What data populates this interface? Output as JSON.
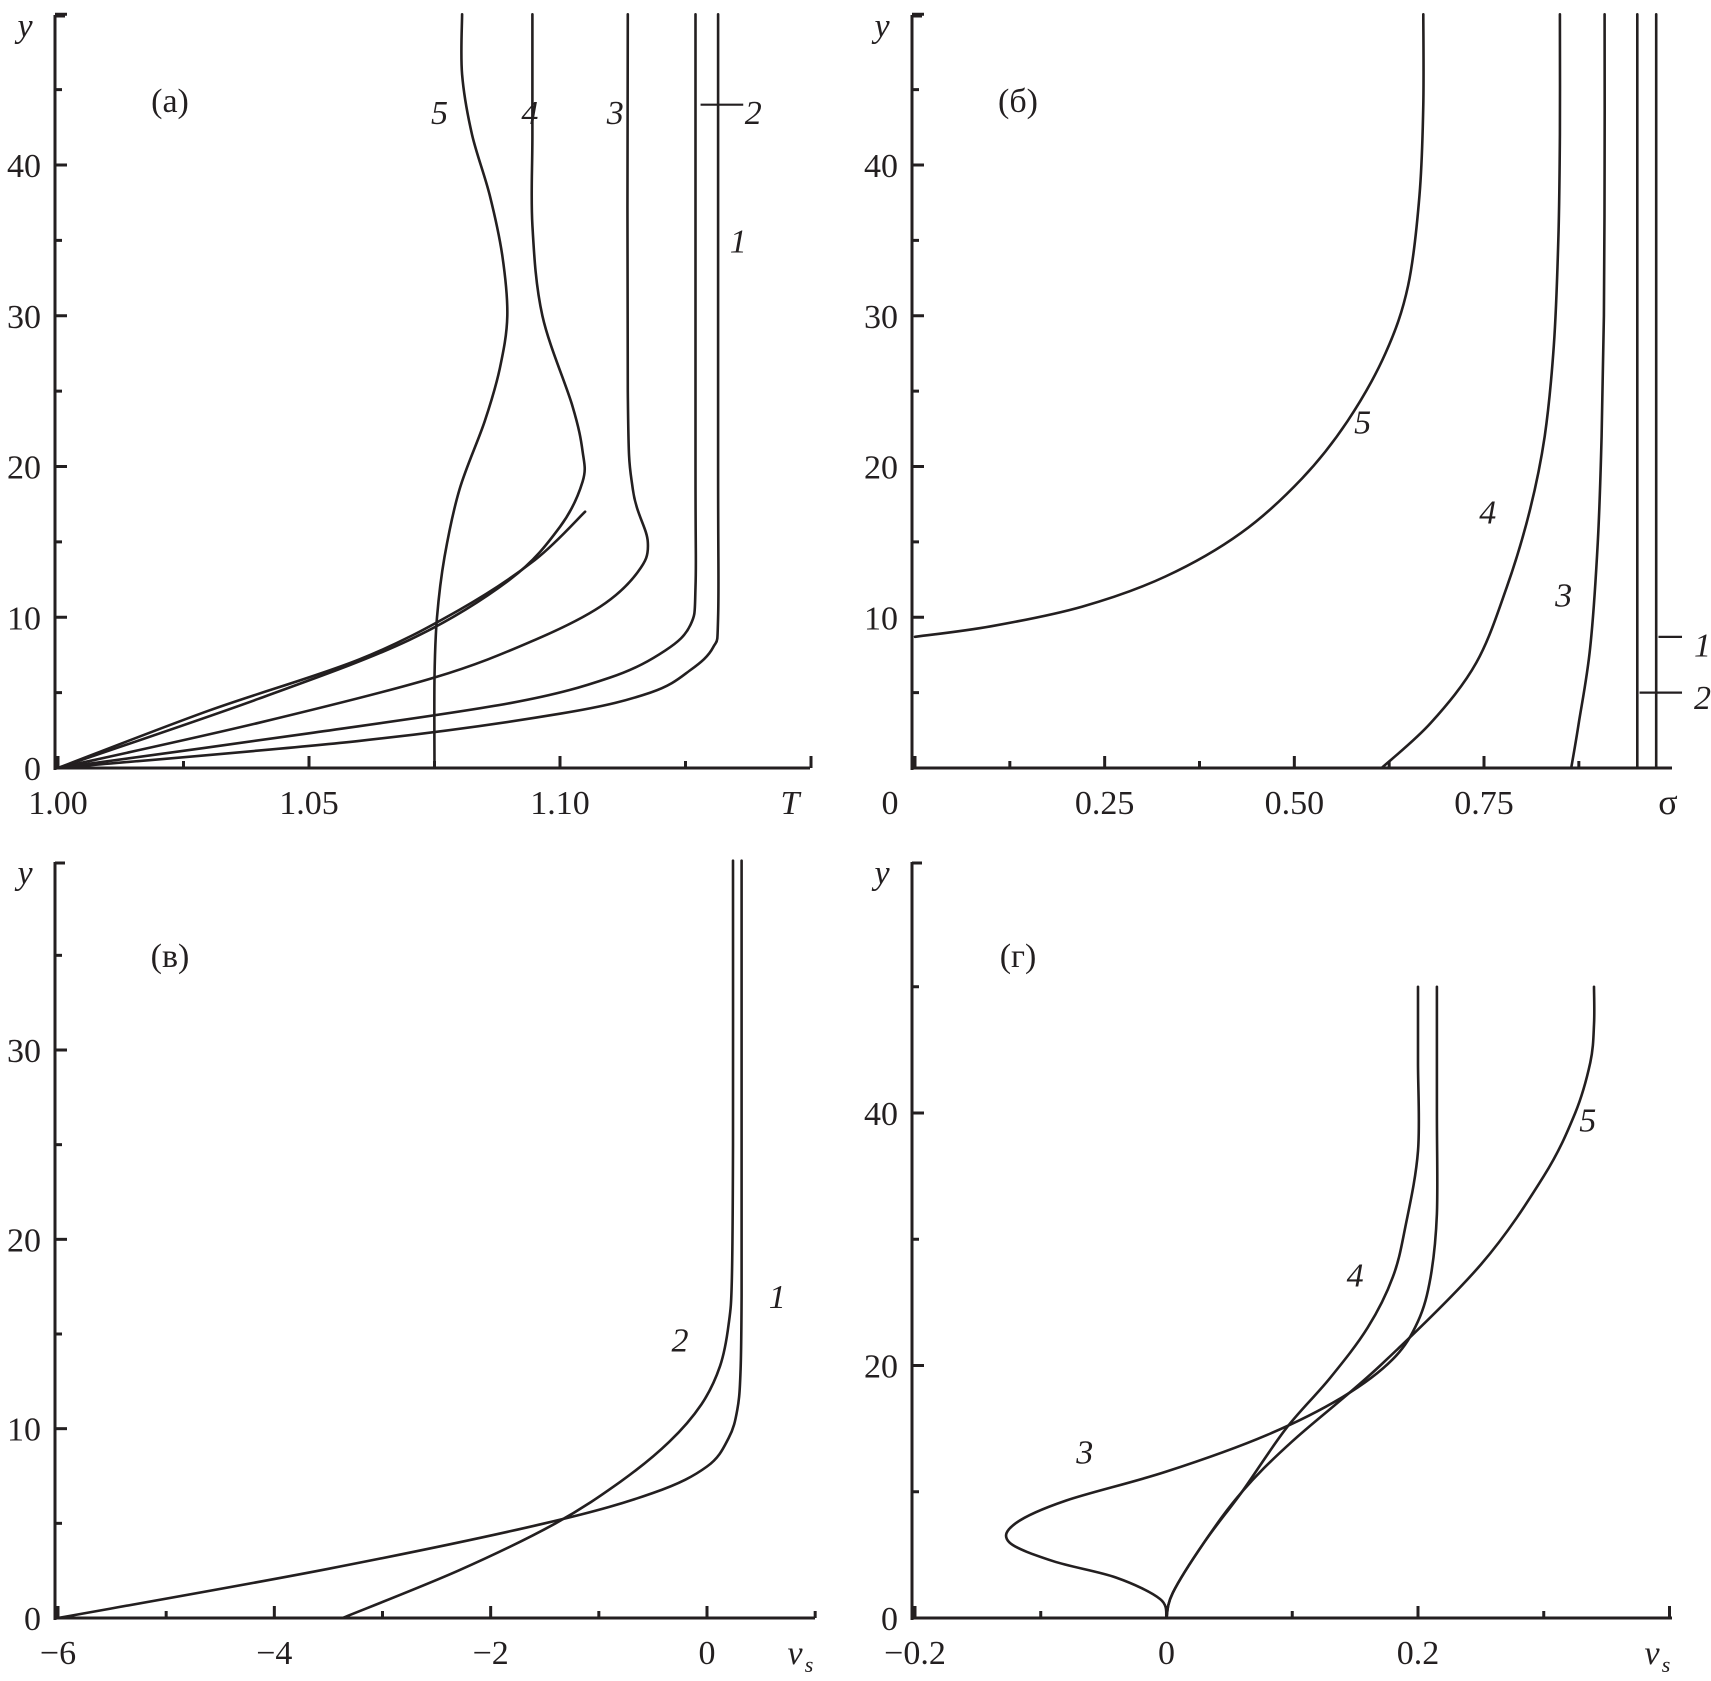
{
  "figure": {
    "panels": [
      "a",
      "b",
      "v",
      "g"
    ]
  },
  "chart_data": [
    {
      "id": "a",
      "type": "line",
      "panel_label": "(а)",
      "xlabel": "T",
      "ylabel": "y",
      "xlim": [
        1.0,
        1.14
      ],
      "ylim": [
        0,
        50
      ],
      "xticks": [
        1.0,
        1.05,
        1.1
      ],
      "xtick_labels": [
        "1.00",
        "1.05",
        "1.10"
      ],
      "yticks": [
        0,
        10,
        20,
        30,
        40
      ],
      "ytick_labels": [
        "0",
        "10",
        "20",
        "30",
        "40"
      ],
      "series": [
        {
          "label": "1",
          "x": [
            1.0,
            1.06,
            1.1,
            1.118,
            1.126,
            1.1305,
            1.1315,
            1.1315,
            1.1315
          ],
          "y": [
            0,
            1.8,
            3.6,
            5,
            6.5,
            8,
            10,
            20,
            50
          ]
        },
        {
          "label": "2",
          "x": [
            1.0,
            1.05,
            1.09,
            1.11,
            1.121,
            1.126,
            1.127,
            1.127,
            1.127
          ],
          "y": [
            0,
            2.3,
            4.3,
            6,
            7.8,
            9.5,
            12,
            20,
            50
          ]
        },
        {
          "label": "3",
          "x": [
            1.0,
            1.04,
            1.075,
            1.095,
            1.108,
            1.1155,
            1.1175,
            1.1145,
            1.1135,
            1.1135
          ],
          "y": [
            0,
            3,
            6,
            8.5,
            10.7,
            13,
            15,
            18.5,
            25,
            50
          ]
        },
        {
          "label": "4",
          "x": [
            1.0,
            1.04,
            1.07,
            1.09,
            1.1,
            1.1045,
            1.1045,
            1.1025,
            1.0965,
            1.0945,
            1.0945,
            1.0945
          ],
          "y": [
            0,
            4.6,
            8.5,
            12.5,
            16,
            19,
            21,
            24,
            30,
            36,
            42,
            50
          ]
        },
        {
          "label": "5",
          "x": [
            1.0,
            1.03,
            1.06,
            1.08,
            1.095,
            1.105
          ],
          "y": [
            0,
            3.8,
            7.2,
            10.5,
            13.8,
            17
          ]
        },
        {
          "label": "5",
          "x": [
            1.075,
            1.075,
            1.0755,
            1.077,
            1.08,
            1.085,
            1.088,
            1.0895,
            1.0885,
            1.086,
            1.0825,
            1.0805,
            1.0805
          ],
          "y": [
            0,
            6,
            10,
            14,
            18.5,
            23,
            26.5,
            30,
            34,
            38,
            42,
            46,
            50
          ]
        }
      ],
      "curve_labels": [
        {
          "text": "5",
          "x": 1.076,
          "y": 43.5
        },
        {
          "text": "4",
          "x": 1.094,
          "y": 43.5
        },
        {
          "text": "3",
          "x": 1.111,
          "y": 43.5
        },
        {
          "text": "2",
          "x": 1.1385,
          "y": 43.5
        },
        {
          "text": "1",
          "x": 1.1355,
          "y": 35
        }
      ],
      "leaders": [
        {
          "x1": 1.128,
          "y1": 44,
          "x2": 1.1365,
          "y2": 44
        }
      ]
    },
    {
      "id": "b",
      "type": "line",
      "panel_label": "(б)",
      "xlabel": "σ",
      "ylabel": "y",
      "xlim": [
        0,
        1.0
      ],
      "ylim": [
        0,
        50
      ],
      "xticks": [
        0,
        0.25,
        0.5,
        0.75
      ],
      "xtick_labels": [
        "0",
        "0.25",
        "0.50",
        "0.75"
      ],
      "yticks": [
        10,
        20,
        30,
        40
      ],
      "ytick_labels": [
        "10",
        "20",
        "30",
        "40"
      ],
      "series": [
        {
          "label": "1",
          "x": [
            0.977,
            0.977
          ],
          "y": [
            0,
            50
          ]
        },
        {
          "label": "2",
          "x": [
            0.952,
            0.952
          ],
          "y": [
            0,
            50
          ]
        },
        {
          "label": "3",
          "x": [
            0.865,
            0.875,
            0.89,
            0.9,
            0.905,
            0.908,
            0.909,
            0.909
          ],
          "y": [
            0,
            3,
            8,
            15,
            22,
            30,
            40,
            50
          ]
        },
        {
          "label": "4",
          "x": [
            0.615,
            0.68,
            0.74,
            0.78,
            0.81,
            0.83,
            0.842,
            0.848,
            0.85,
            0.85
          ],
          "y": [
            0,
            3,
            7,
            12,
            17,
            22,
            28,
            35,
            42,
            50
          ]
        },
        {
          "label": "5",
          "x": [
            0,
            0.1,
            0.22,
            0.33,
            0.43,
            0.51,
            0.57,
            0.62,
            0.65,
            0.665,
            0.67,
            0.67
          ],
          "y": [
            8.7,
            9.4,
            10.7,
            12.7,
            15.6,
            19.2,
            23,
            27.5,
            32,
            38,
            44,
            50
          ]
        }
      ],
      "curve_labels": [
        {
          "text": "5",
          "x": 0.59,
          "y": 23
        },
        {
          "text": "4",
          "x": 0.755,
          "y": 17
        },
        {
          "text": "3",
          "x": 0.855,
          "y": 11.5
        },
        {
          "text": "1",
          "x": 1.038,
          "y": 8.2
        },
        {
          "text": "2",
          "x": 1.038,
          "y": 4.7
        }
      ],
      "leaders": [
        {
          "x1": 0.98,
          "y1": 8.7,
          "x2": 1.011,
          "y2": 8.7
        },
        {
          "x1": 0.955,
          "y1": 5.0,
          "x2": 1.011,
          "y2": 5.0
        }
      ]
    },
    {
      "id": "v",
      "type": "line",
      "panel_label": "(в)",
      "xlabel": "v",
      "xlabel_sub": "s",
      "ylabel": "y",
      "xlim": [
        -6,
        1.0
      ],
      "ylim": [
        0,
        40
      ],
      "xticks": [
        -6,
        -4,
        -2,
        0
      ],
      "xtick_labels": [
        "−6",
        "−4",
        "−2",
        "0"
      ],
      "yticks": [
        0,
        10,
        20,
        30
      ],
      "ytick_labels": [
        "0",
        "10",
        "20",
        "30"
      ],
      "series": [
        {
          "label": "1",
          "x": [
            -6,
            -3.5,
            -1.5,
            -0.5,
            0.0,
            0.2,
            0.28,
            0.31,
            0.32,
            0.32,
            0.32
          ],
          "y": [
            0,
            2.6,
            5,
            6.6,
            8,
            9.5,
            11,
            13,
            17,
            25,
            40
          ]
        },
        {
          "label": "2",
          "x": [
            -3.37,
            -2.3,
            -1.4,
            -0.8,
            -0.35,
            -0.05,
            0.12,
            0.2,
            0.23,
            0.24,
            0.24
          ],
          "y": [
            0,
            2.5,
            5,
            7.2,
            9.3,
            11.3,
            13.3,
            15.5,
            18,
            25,
            40
          ]
        }
      ],
      "curve_labels": [
        {
          "text": "1",
          "x": 0.65,
          "y": 17
        },
        {
          "text": "2",
          "x": -0.25,
          "y": 14.7
        }
      ],
      "leaders": []
    },
    {
      "id": "g",
      "type": "line",
      "panel_label": "(г)",
      "xlabel": "v",
      "xlabel_sub": "s",
      "ylabel": "y",
      "xlim": [
        -0.2,
        0.4
      ],
      "ylim": [
        0,
        50
      ],
      "xticks": [
        -0.2,
        0,
        0.2
      ],
      "xtick_labels": [
        "−0.2",
        "0",
        "0.2"
      ],
      "yticks": [
        0,
        20,
        40
      ],
      "ytick_labels": [
        "0",
        "20",
        "40"
      ],
      "series": [
        {
          "label": "3",
          "x": [
            0,
            -0.005,
            -0.04,
            -0.09,
            -0.125,
            -0.12,
            -0.08,
            0.0,
            0.08,
            0.14,
            0.18,
            0.2,
            0.21,
            0.215,
            0.215,
            0.215
          ],
          "y": [
            0,
            1.5,
            3.2,
            4.5,
            6,
            7.5,
            9.3,
            11.6,
            14.5,
            17.5,
            20.5,
            23.5,
            27,
            32,
            40,
            50
          ]
        },
        {
          "label": "4",
          "x": [
            0,
            0.005,
            0.03,
            0.06,
            0.095,
            0.13,
            0.16,
            0.18,
            0.19,
            0.2,
            0.2,
            0.2
          ],
          "y": [
            0,
            2,
            6,
            10,
            15,
            19,
            23,
            27,
            31,
            37,
            44,
            50
          ]
        },
        {
          "label": "5",
          "x": [
            0,
            0.005,
            0.03,
            0.06,
            0.1,
            0.17,
            0.25,
            0.3,
            0.325,
            0.337,
            0.34,
            0.34
          ],
          "y": [
            0,
            2,
            6,
            10,
            14,
            20,
            28,
            35,
            40,
            44,
            47,
            50
          ]
        }
      ],
      "curve_labels": [
        {
          "text": "3",
          "x": -0.065,
          "y": 13.2
        },
        {
          "text": "4",
          "x": 0.15,
          "y": 27.2
        },
        {
          "text": "5",
          "x": 0.335,
          "y": 39.5
        }
      ],
      "leaders": []
    }
  ]
}
